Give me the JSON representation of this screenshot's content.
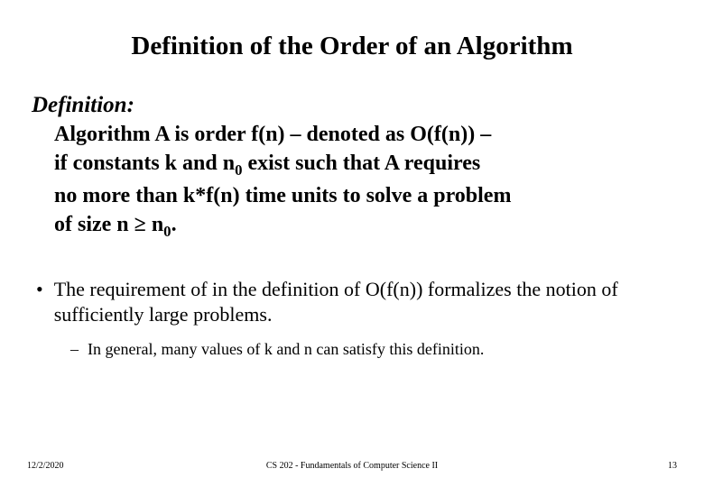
{
  "title": "Definition of the Order of an Algorithm",
  "definition": {
    "label": "Definition:",
    "line1_pre": "Algorithm A is order f(n)  – denoted as O(f(n)) –",
    "line2_pre": "if constants k and n",
    "line2_sub": "0",
    "line2_post": " exist such that A requires",
    "line3": "no more than  k*f(n)  time units to solve a problem",
    "line4_pre": "of size  n  ≥ n",
    "line4_sub": "0",
    "line4_post": "."
  },
  "bullet": {
    "marker": "•",
    "text": "The requirement  of  in the definition of O(f(n)) formalizes the notion of sufficiently large problems."
  },
  "subbullet": {
    "marker": "–",
    "text": "In general, many values of k and  n can satisfy this definition."
  },
  "footer": {
    "date": "12/2/2020",
    "course": "CS 202 - Fundamentals of Computer Science II",
    "page": "13"
  }
}
